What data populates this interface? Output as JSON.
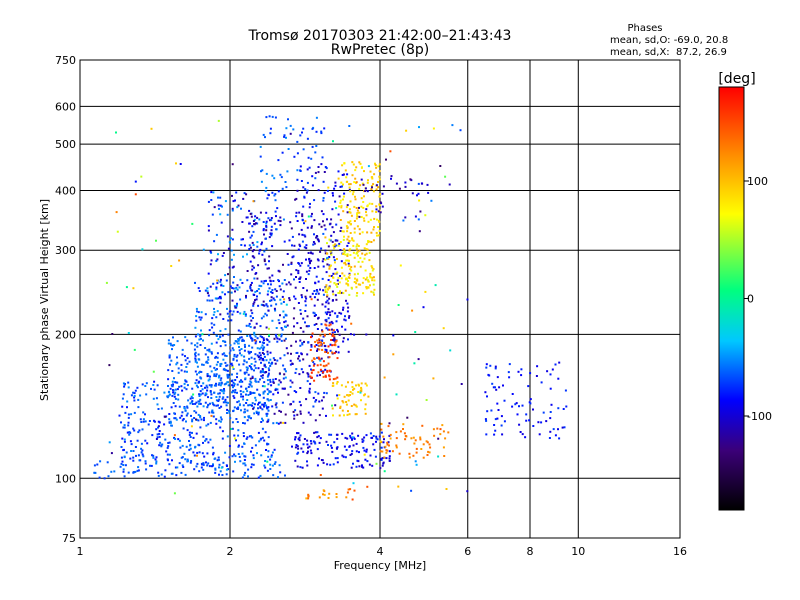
{
  "chart_data": {
    "type": "scatter",
    "title": "Tromsø 20170303 21:42:00–21:43:43",
    "subtitle": "RwPretec (8p)",
    "xlabel": "Frequency [MHz]",
    "ylabel": "Stationary phase Virtual Height [km]",
    "x_scale": "log",
    "y_scale": "log",
    "xlim": [
      1,
      16
    ],
    "ylim": [
      75,
      750
    ],
    "x_ticks": [
      "1",
      "2",
      "4",
      "6",
      "8",
      "10",
      "16"
    ],
    "y_ticks": [
      "75",
      "100",
      "200",
      "300",
      "400",
      "500",
      "600",
      "750"
    ],
    "grid": true,
    "phases_box": {
      "heading": "Phases",
      "line1": "mean, sd,O: -69.0, 20.8",
      "line2": "mean, sd,X:  87.2, 26.9"
    },
    "colorbar": {
      "label": "[deg]",
      "range": [
        -180,
        180
      ],
      "ticks": [
        "100",
        "0",
        "-100"
      ],
      "colormap": [
        "#000000",
        "#3b0078",
        "#0000ff",
        "#00c8ff",
        "#00ff7f",
        "#ffff00",
        "#ff8c00",
        "#ff0000"
      ]
    },
    "clusters": [
      {
        "freq": [
          1.05,
          2.6
        ],
        "height": [
          100,
          110
        ],
        "phase": [
          -80,
          -55
        ],
        "count": 90
      },
      {
        "freq": [
          1.2,
          2.5
        ],
        "height": [
          105,
          160
        ],
        "phase": [
          -85,
          -50
        ],
        "count": 420
      },
      {
        "freq": [
          1.5,
          2.4
        ],
        "height": [
          130,
          200
        ],
        "phase": [
          -80,
          -50
        ],
        "count": 360
      },
      {
        "freq": [
          1.7,
          2.6
        ],
        "height": [
          150,
          260
        ],
        "phase": [
          -80,
          -45
        ],
        "count": 260
      },
      {
        "freq": [
          1.8,
          2.5
        ],
        "height": [
          220,
          400
        ],
        "phase": [
          -120,
          -40
        ],
        "count": 160
      },
      {
        "freq": [
          2.2,
          3.3
        ],
        "height": [
          130,
          360
        ],
        "phase": [
          -130,
          -60
        ],
        "count": 380
      },
      {
        "freq": [
          2.3,
          3.1
        ],
        "height": [
          380,
          580
        ],
        "phase": [
          -80,
          -50
        ],
        "count": 70
      },
      {
        "freq": [
          2.7,
          3.5
        ],
        "height": [
          180,
          460
        ],
        "phase": [
          -120,
          -70
        ],
        "count": 200
      },
      {
        "freq": [
          2.9,
          3.3
        ],
        "height": [
          160,
          210
        ],
        "phase": [
          130,
          170
        ],
        "count": 80
      },
      {
        "freq": [
          3.1,
          3.9
        ],
        "height": [
          240,
          320
        ],
        "phase": [
          60,
          110
        ],
        "count": 170
      },
      {
        "freq": [
          3.3,
          4.0
        ],
        "height": [
          320,
          460
        ],
        "phase": [
          70,
          110
        ],
        "count": 140
      },
      {
        "freq": [
          3.2,
          3.8
        ],
        "height": [
          135,
          160
        ],
        "phase": [
          80,
          110
        ],
        "count": 60
      },
      {
        "freq": [
          2.7,
          4.2
        ],
        "height": [
          105,
          125
        ],
        "phase": [
          -110,
          -70
        ],
        "count": 150
      },
      {
        "freq": [
          4.0,
          5.5
        ],
        "height": [
          110,
          130
        ],
        "phase": [
          110,
          140
        ],
        "count": 60
      },
      {
        "freq": [
          3.6,
          5.1
        ],
        "height": [
          350,
          430
        ],
        "phase": [
          -130,
          -90
        ],
        "count": 35
      },
      {
        "freq": [
          6.5,
          9.5
        ],
        "height": [
          120,
          175
        ],
        "phase": [
          -100,
          -70
        ],
        "count": 90
      },
      {
        "freq": [
          2.8,
          3.6
        ],
        "height": [
          90,
          96
        ],
        "phase": [
          100,
          150
        ],
        "count": 20
      },
      {
        "freq": [
          1.1,
          6.0
        ],
        "height": [
          90,
          560
        ],
        "phase": [
          -140,
          150
        ],
        "count": 150
      }
    ]
  }
}
